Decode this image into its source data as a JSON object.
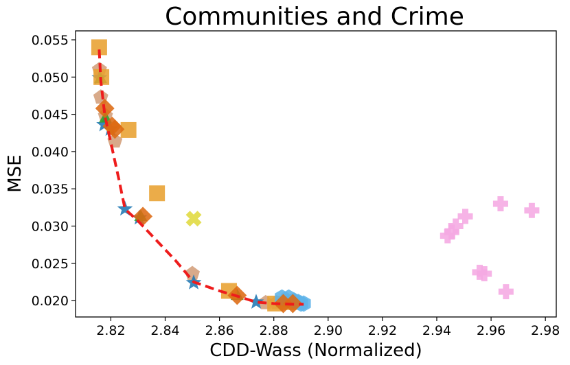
{
  "chart_data": {
    "type": "scatter",
    "title": "Communities and Crime",
    "xlabel": "CDD-Wass (Normalized)",
    "ylabel": "MSE",
    "xlim": [
      2.807,
      2.984
    ],
    "ylim": [
      0.0178,
      0.0562
    ],
    "x_ticks": [
      2.82,
      2.84,
      2.86,
      2.88,
      2.9,
      2.92,
      2.94,
      2.96,
      2.98
    ],
    "x_tick_labels": [
      "2.82",
      "2.84",
      "2.86",
      "2.88",
      "2.90",
      "2.92",
      "2.94",
      "2.96",
      "2.98"
    ],
    "y_ticks": [
      0.02,
      0.025,
      0.03,
      0.035,
      0.04,
      0.045,
      0.05,
      0.055
    ],
    "y_tick_labels": [
      "0.020",
      "0.025",
      "0.030",
      "0.035",
      "0.040",
      "0.045",
      "0.050",
      "0.055"
    ],
    "grid": false,
    "legend": false,
    "series": [
      {
        "marker": "pentagon",
        "color": "#d39e7a",
        "points": [
          [
            2.8158,
            0.051
          ],
          [
            2.8163,
            0.0473
          ],
          [
            2.818,
            0.0448
          ],
          [
            2.8215,
            0.0414
          ],
          [
            2.85,
            0.0236
          ],
          [
            2.877,
            0.0197
          ],
          [
            2.881,
            0.0197
          ]
        ]
      },
      {
        "marker": "star",
        "color": "#1f77b4",
        "points": [
          [
            2.8158,
            0.0499
          ],
          [
            2.8175,
            0.0436
          ],
          [
            2.8198,
            0.043
          ],
          [
            2.8252,
            0.0323
          ],
          [
            2.8305,
            0.0311
          ],
          [
            2.8505,
            0.0224
          ],
          [
            2.8735,
            0.0198
          ]
        ]
      },
      {
        "marker": "triangle",
        "color": "#2ca02c",
        "points": [
          [
            2.8162,
            0.0497
          ],
          [
            2.818,
            0.0444
          ],
          [
            2.831,
            0.0312
          ],
          [
            2.8665,
            0.0206
          ],
          [
            2.883,
            0.0196
          ]
        ]
      },
      {
        "marker": "square",
        "color": "#e8a030",
        "points": [
          [
            2.8157,
            0.054
          ],
          [
            2.8165,
            0.05
          ],
          [
            2.8265,
            0.0429
          ],
          [
            2.837,
            0.0344
          ],
          [
            2.8635,
            0.0213
          ],
          [
            2.8805,
            0.0196
          ],
          [
            2.8855,
            0.0198
          ]
        ]
      },
      {
        "marker": "hexagon",
        "color": "#5db3e8",
        "points": [
          [
            2.883,
            0.0204
          ],
          [
            2.8855,
            0.0204
          ],
          [
            2.8875,
            0.02
          ],
          [
            2.889,
            0.0198
          ],
          [
            2.89,
            0.0196
          ],
          [
            2.891,
            0.0196
          ]
        ]
      },
      {
        "marker": "diamond",
        "color": "#dd6a12",
        "points": [
          [
            2.8178,
            0.0458
          ],
          [
            2.8205,
            0.0434
          ],
          [
            2.8215,
            0.043
          ],
          [
            2.8318,
            0.0313
          ],
          [
            2.8665,
            0.0207
          ],
          [
            2.8835,
            0.0196
          ],
          [
            2.887,
            0.0196
          ]
        ]
      },
      {
        "marker": "x",
        "color": "#e0da3e",
        "points": [
          [
            2.8505,
            0.031
          ]
        ]
      },
      {
        "marker": "plus",
        "color": "#f5a8e2",
        "points": [
          [
            2.944,
            0.0287
          ],
          [
            2.9455,
            0.0292
          ],
          [
            2.947,
            0.03
          ],
          [
            2.9505,
            0.0313
          ],
          [
            2.9558,
            0.0238
          ],
          [
            2.9575,
            0.0236
          ],
          [
            2.9635,
            0.033
          ],
          [
            2.9655,
            0.0212
          ],
          [
            2.975,
            0.0321
          ]
        ]
      }
    ],
    "trend_line": {
      "style": "dashed",
      "color": "#ee1c1c",
      "points": [
        [
          2.8157,
          0.0537
        ],
        [
          2.8163,
          0.0495
        ],
        [
          2.8178,
          0.0448
        ],
        [
          2.82,
          0.0412
        ],
        [
          2.823,
          0.0362
        ],
        [
          2.8252,
          0.0323
        ],
        [
          2.8305,
          0.0305
        ],
        [
          2.837,
          0.028
        ],
        [
          2.844,
          0.0253
        ],
        [
          2.8505,
          0.0225
        ],
        [
          2.86,
          0.0213
        ],
        [
          2.8665,
          0.0206
        ],
        [
          2.8735,
          0.0198
        ],
        [
          2.88,
          0.0196
        ],
        [
          2.887,
          0.0195
        ],
        [
          2.891,
          0.0195
        ]
      ]
    }
  }
}
